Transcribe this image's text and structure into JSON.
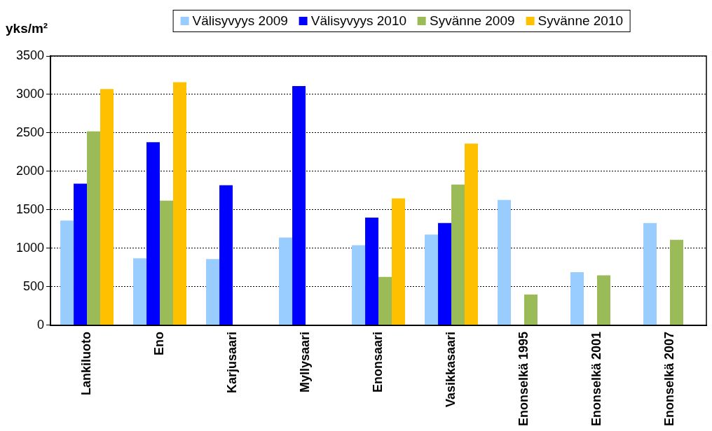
{
  "chart_data": {
    "type": "bar",
    "ylabel": "yks/m²",
    "categories": [
      "Lankiluoto",
      "Eno",
      "Karjusaari",
      "Myllysaari",
      "Enonsaari",
      "Vasikkasaari",
      "Enonselkä 1995",
      "Enonselkä 2001",
      "Enonselkä 2007"
    ],
    "series": [
      {
        "name": "Välisyvyys 2009",
        "color": "#99ccff",
        "values": [
          1360,
          870,
          860,
          1140,
          1040,
          1180,
          1630,
          690,
          1330
        ]
      },
      {
        "name": "Välisyvyys 2010",
        "color": "#0000ff",
        "values": [
          1840,
          2380,
          1820,
          3110,
          1400,
          1330,
          null,
          null,
          null
        ]
      },
      {
        "name": "Syvänne 2009",
        "color": "#9bbb59",
        "values": [
          2520,
          1620,
          null,
          null,
          630,
          1830,
          400,
          650,
          1110
        ]
      },
      {
        "name": "Syvänne 2010",
        "color": "#ffc000",
        "values": [
          3070,
          3160,
          null,
          null,
          1650,
          2360,
          null,
          null,
          null
        ]
      }
    ],
    "ylim": [
      0,
      3500
    ],
    "yticks": [
      0,
      500,
      1000,
      1500,
      2000,
      2500,
      3000,
      3500
    ],
    "grid": "y",
    "legend": "top"
  }
}
